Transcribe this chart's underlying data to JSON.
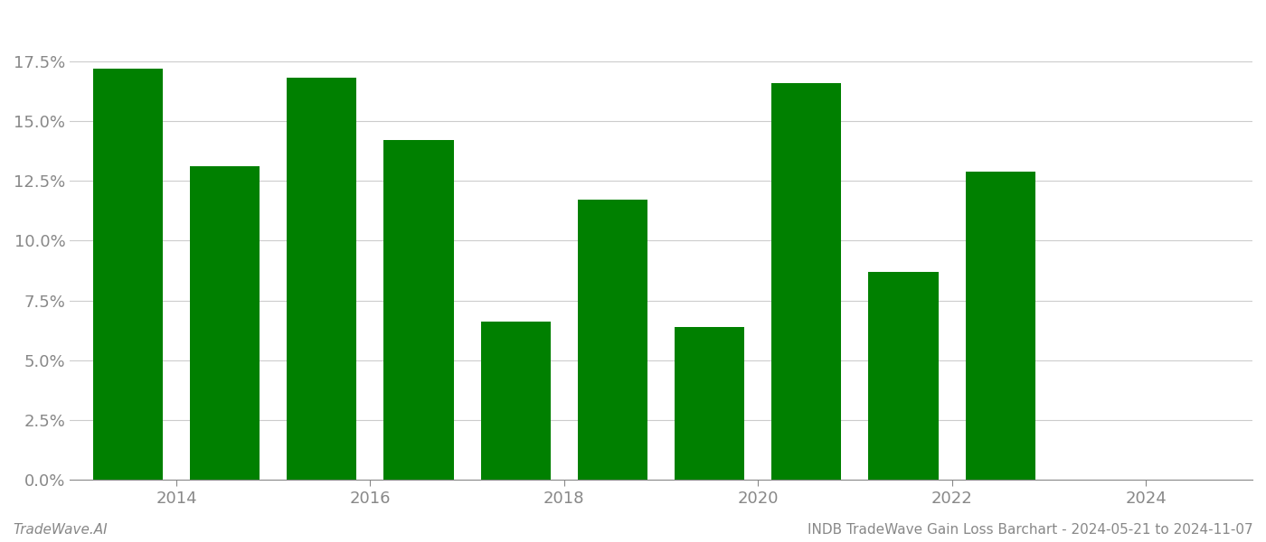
{
  "years": [
    2013,
    2014,
    2015,
    2016,
    2017,
    2018,
    2019,
    2020,
    2021,
    2022
  ],
  "values": [
    0.172,
    0.131,
    0.168,
    0.142,
    0.066,
    0.117,
    0.064,
    0.166,
    0.087,
    0.129
  ],
  "bar_color": "#008000",
  "background_color": "#ffffff",
  "ylabel_ticks": [
    0.0,
    0.025,
    0.05,
    0.075,
    0.1,
    0.125,
    0.15,
    0.175
  ],
  "ylim": [
    0,
    0.195
  ],
  "xlim": [
    2012.4,
    2024.6
  ],
  "xtick_positions": [
    2013.5,
    2015.5,
    2017.5,
    2019.5,
    2021.5,
    2023.5
  ],
  "xtick_labels": [
    "2014",
    "2016",
    "2018",
    "2020",
    "2022",
    "2024"
  ],
  "footer_left": "TradeWave.AI",
  "footer_right": "INDB TradeWave Gain Loss Barchart - 2024-05-21 to 2024-11-07",
  "grid_color": "#cccccc",
  "tick_color": "#888888",
  "footer_color": "#888888"
}
